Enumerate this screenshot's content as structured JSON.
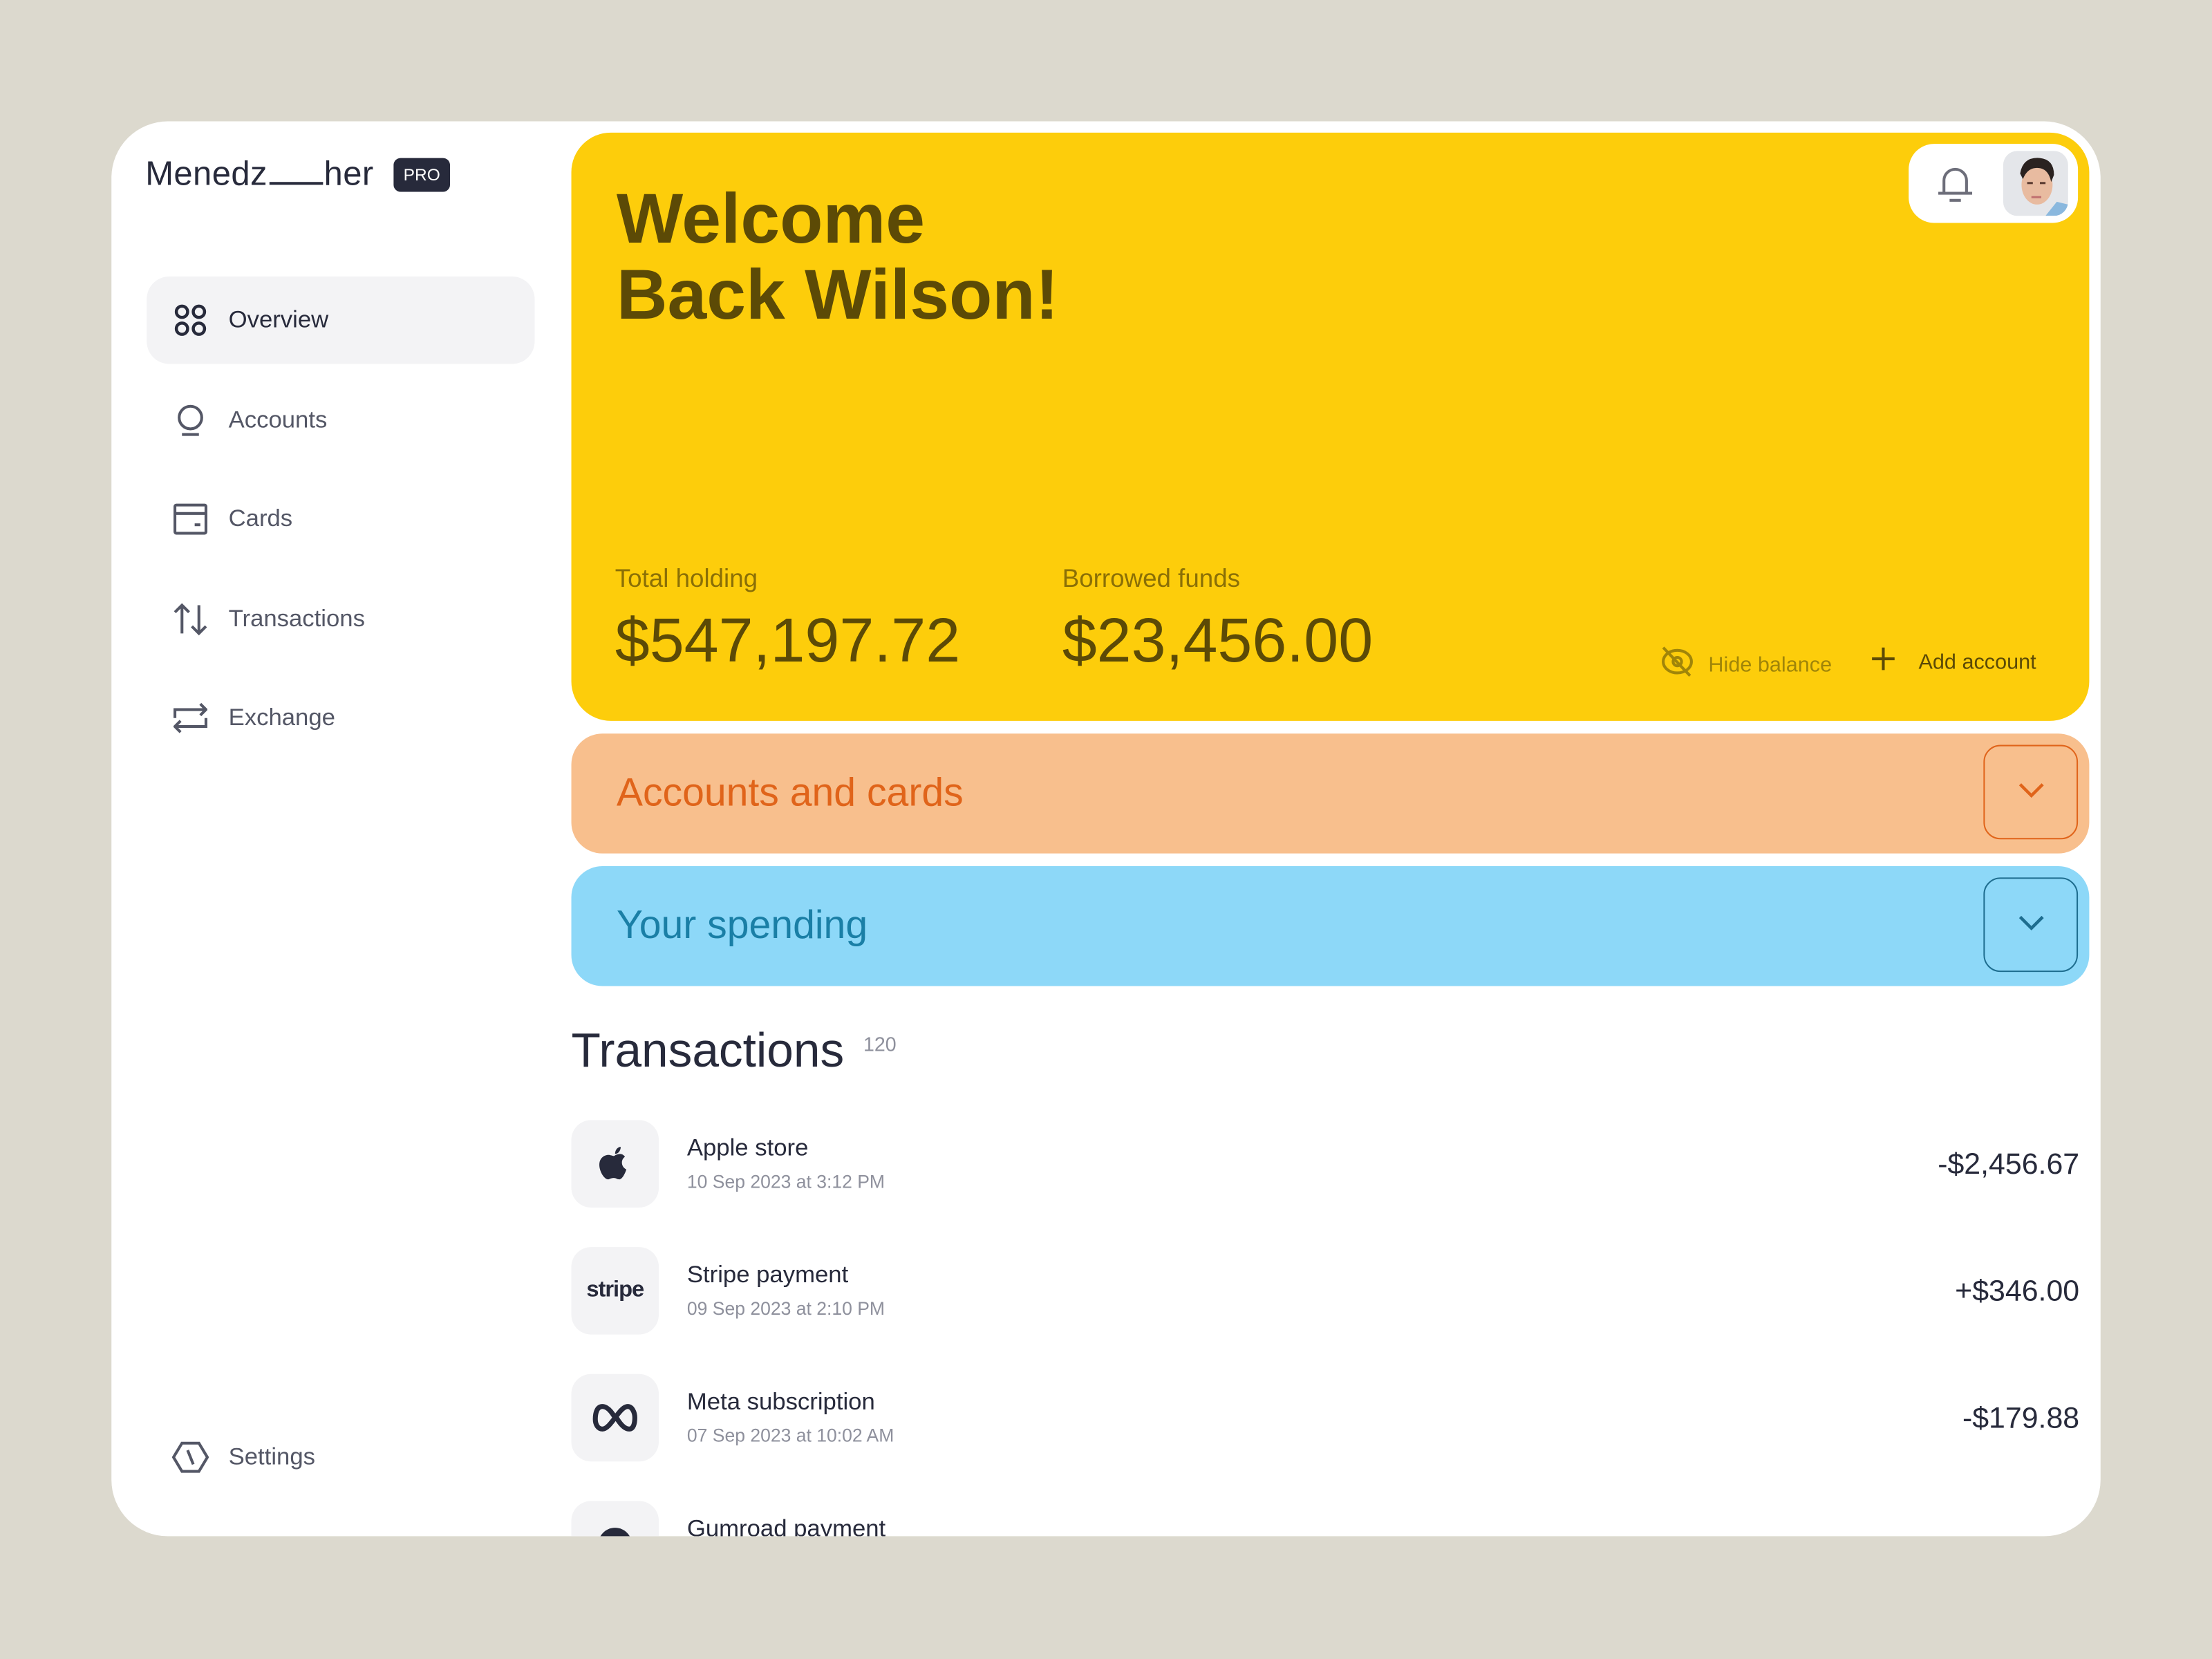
{
  "brand": {
    "name_left": "Menedz",
    "name_right": "her",
    "badge": "PRO"
  },
  "sidebar": {
    "items": [
      {
        "label": "Overview",
        "icon": "grid-circles-icon",
        "active": true
      },
      {
        "label": "Accounts",
        "icon": "account-icon"
      },
      {
        "label": "Cards",
        "icon": "card-icon"
      },
      {
        "label": "Transactions",
        "icon": "arrows-up-down-icon"
      },
      {
        "label": "Exchange",
        "icon": "exchange-icon"
      }
    ],
    "settings": {
      "label": "Settings",
      "icon": "settings-icon"
    }
  },
  "hero": {
    "welcome_line1": "Welcome",
    "welcome_line2": "Back Wilson!",
    "total_label": "Total holding",
    "total_value": "$547,197.72",
    "borrowed_label": "Borrowed funds",
    "borrowed_value": "$23,456.00",
    "hide_balance": "Hide balance",
    "add_account": "Add account",
    "color": "#fdcd0b"
  },
  "sections": [
    {
      "title": "Accounts and cards",
      "bg": "#f8bf8d",
      "fg": "#e0641a"
    },
    {
      "title": "Your spending",
      "bg": "#8dd8f8",
      "fg": "#1a7fa6"
    }
  ],
  "transactions": {
    "title": "Transactions",
    "count": "120",
    "rows": [
      {
        "name": "Apple store",
        "date": "10 Sep 2023 at 3:12 PM",
        "amount": "-$2,456.67",
        "icon": "apple-icon"
      },
      {
        "name": "Stripe payment",
        "date": "09 Sep 2023 at 2:10 PM",
        "amount": "+$346.00",
        "icon": "stripe-icon",
        "logo_text": "stripe"
      },
      {
        "name": "Meta subscription",
        "date": "07 Sep 2023 at 10:02 AM",
        "amount": "-$179.88",
        "icon": "meta-icon"
      },
      {
        "name": "Gumroad payment",
        "icon": "gumroad-icon"
      }
    ]
  }
}
